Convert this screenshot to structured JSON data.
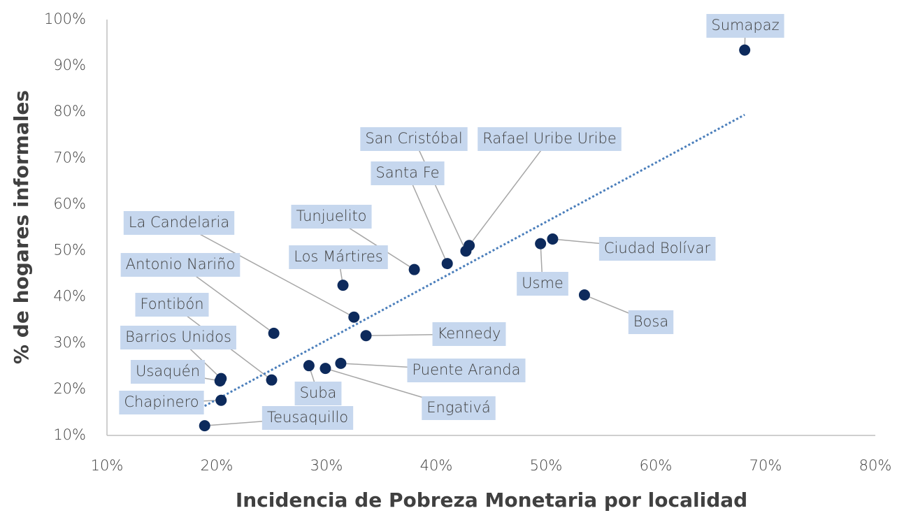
{
  "chart_data": {
    "type": "scatter",
    "x_label": "Incidencia de Pobreza Monetaria por localidad",
    "y_label": "% de hogares informales",
    "labels": [
      "Sumapaz",
      "Rafael Uribe Uribe",
      "San Cristóbal",
      "Santa Fe",
      "Tunjuelito",
      "Ciudad Bolívar",
      "Usme",
      "Bosa",
      "Los Mártires",
      "La Candelaria",
      "Kennedy",
      "Antonio Nariño",
      "Fontibón",
      "Puente Aranda",
      "Engativá",
      "Suba",
      "Barrios Unidos",
      "Usaquén",
      "Chapinero",
      "Teusaquillo"
    ],
    "x": [
      68.1,
      43.0,
      42.7,
      41.0,
      38.0,
      50.6,
      49.5,
      53.5,
      31.5,
      32.5,
      33.6,
      25.2,
      25.0,
      31.3,
      29.9,
      28.4,
      20.4,
      20.3,
      20.4,
      18.9
    ],
    "y": [
      93.4,
      51.1,
      49.9,
      47.2,
      45.9,
      52.5,
      51.5,
      40.4,
      42.5,
      35.6,
      31.6,
      32.1,
      22.0,
      25.6,
      24.5,
      25.1,
      22.3,
      21.8,
      17.6,
      12.1
    ],
    "color": "#0d2a5c",
    "label_color": "#c6d7ee",
    "trendline": true,
    "trend_color": "#4a7ebb",
    "xlim": [
      10,
      80
    ],
    "ylim": [
      10,
      100
    ],
    "xticks": [
      {
        "value": 10,
        "label": "10%"
      },
      {
        "value": 20,
        "label": "20%"
      },
      {
        "value": 30,
        "label": "30%"
      },
      {
        "value": 40,
        "label": "40%"
      },
      {
        "value": 50,
        "label": "50%"
      },
      {
        "value": 60,
        "label": "60%"
      },
      {
        "value": 70,
        "label": "70%"
      },
      {
        "value": 80,
        "label": "80%"
      }
    ],
    "yticks": [
      {
        "value": 10,
        "label": "10%"
      },
      {
        "value": 20,
        "label": "20%"
      },
      {
        "value": 30,
        "label": "30%"
      },
      {
        "value": 40,
        "label": "40%"
      },
      {
        "value": 50,
        "label": "50%"
      },
      {
        "value": 60,
        "label": "60%"
      },
      {
        "value": 70,
        "label": "70%"
      },
      {
        "value": 80,
        "label": "80%"
      },
      {
        "value": 90,
        "label": "90%"
      },
      {
        "value": 100,
        "label": "100%"
      }
    ]
  }
}
